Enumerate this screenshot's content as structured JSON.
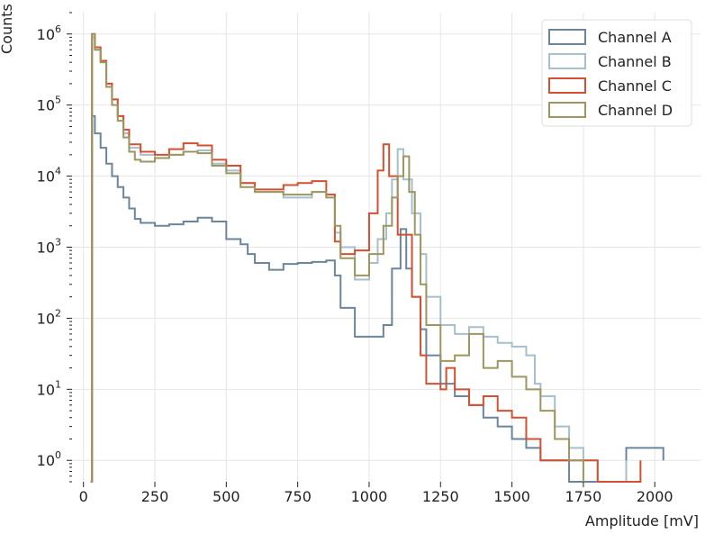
{
  "chart_data": {
    "type": "step-histogram",
    "xlabel": "Amplitude [mV]",
    "ylabel": "Counts",
    "x_ticks": [
      0,
      250,
      500,
      750,
      1000,
      1250,
      1500,
      1750,
      2000
    ],
    "x_tick_labels": [
      "0",
      "250",
      "500",
      "750",
      "1000",
      "1250",
      "1500",
      "1750",
      "2000"
    ],
    "xlim": [
      -40,
      2160
    ],
    "y_scale": "log",
    "ylim": [
      0.5,
      2000000
    ],
    "y_ticks": [
      1,
      10,
      100,
      1000,
      10000,
      100000,
      1000000
    ],
    "y_tick_labels": [
      {
        "base": "10",
        "exp": "0"
      },
      {
        "base": "10",
        "exp": "1"
      },
      {
        "base": "10",
        "exp": "2"
      },
      {
        "base": "10",
        "exp": "3"
      },
      {
        "base": "10",
        "exp": "4"
      },
      {
        "base": "10",
        "exp": "5"
      },
      {
        "base": "10",
        "exp": "6"
      }
    ],
    "grid": true,
    "legend_position": "top-right",
    "series": [
      {
        "name": "Channel A",
        "color": "#6b869b",
        "points": [
          [
            25,
            0.5
          ],
          [
            30,
            70000
          ],
          [
            40,
            40000
          ],
          [
            60,
            25000
          ],
          [
            80,
            15000
          ],
          [
            100,
            10000
          ],
          [
            120,
            7000
          ],
          [
            140,
            5000
          ],
          [
            160,
            3500
          ],
          [
            180,
            2500
          ],
          [
            200,
            2200
          ],
          [
            250,
            2000
          ],
          [
            300,
            2100
          ],
          [
            350,
            2300
          ],
          [
            400,
            2600
          ],
          [
            450,
            2300
          ],
          [
            500,
            1300
          ],
          [
            550,
            1100
          ],
          [
            575,
            800
          ],
          [
            600,
            600
          ],
          [
            650,
            480
          ],
          [
            700,
            580
          ],
          [
            750,
            600
          ],
          [
            800,
            620
          ],
          [
            850,
            650
          ],
          [
            880,
            400
          ],
          [
            900,
            140
          ],
          [
            950,
            55
          ],
          [
            1000,
            55
          ],
          [
            1050,
            80
          ],
          [
            1080,
            500
          ],
          [
            1110,
            1800
          ],
          [
            1130,
            500
          ],
          [
            1150,
            200
          ],
          [
            1180,
            70
          ],
          [
            1200,
            30
          ],
          [
            1250,
            12
          ],
          [
            1300,
            8
          ],
          [
            1350,
            6
          ],
          [
            1400,
            4
          ],
          [
            1450,
            3
          ],
          [
            1500,
            2
          ],
          [
            1550,
            1.5
          ],
          [
            1600,
            1
          ],
          [
            1650,
            1
          ],
          [
            1700,
            0.5
          ],
          [
            1900,
            1.5
          ],
          [
            2030,
            1
          ]
        ]
      },
      {
        "name": "Channel B",
        "color": "#a7bfcc",
        "points": [
          [
            25,
            0.5
          ],
          [
            30,
            900000
          ],
          [
            40,
            600000
          ],
          [
            60,
            400000
          ],
          [
            80,
            200000
          ],
          [
            100,
            120000
          ],
          [
            120,
            70000
          ],
          [
            140,
            40000
          ],
          [
            160,
            25000
          ],
          [
            200,
            20000
          ],
          [
            250,
            18000
          ],
          [
            300,
            20000
          ],
          [
            350,
            22000
          ],
          [
            400,
            23000
          ],
          [
            450,
            15000
          ],
          [
            500,
            12000
          ],
          [
            550,
            8000
          ],
          [
            600,
            6000
          ],
          [
            700,
            5000
          ],
          [
            800,
            6000
          ],
          [
            850,
            5500
          ],
          [
            880,
            1600
          ],
          [
            900,
            1000
          ],
          [
            950,
            350
          ],
          [
            1000,
            600
          ],
          [
            1030,
            1300
          ],
          [
            1060,
            3000
          ],
          [
            1080,
            9000
          ],
          [
            1100,
            24000
          ],
          [
            1120,
            9000
          ],
          [
            1150,
            3000
          ],
          [
            1180,
            800
          ],
          [
            1200,
            200
          ],
          [
            1250,
            80
          ],
          [
            1300,
            60
          ],
          [
            1350,
            75
          ],
          [
            1400,
            55
          ],
          [
            1450,
            45
          ],
          [
            1500,
            40
          ],
          [
            1550,
            30
          ],
          [
            1580,
            12
          ],
          [
            1600,
            8
          ],
          [
            1650,
            3
          ],
          [
            1700,
            1.5
          ],
          [
            1750,
            1
          ],
          [
            1800,
            0.5
          ],
          [
            1900,
            1
          ]
        ]
      },
      {
        "name": "Channel C",
        "color": "#d45033",
        "points": [
          [
            25,
            0.5
          ],
          [
            30,
            1000000
          ],
          [
            40,
            650000
          ],
          [
            60,
            420000
          ],
          [
            80,
            200000
          ],
          [
            100,
            120000
          ],
          [
            120,
            70000
          ],
          [
            140,
            45000
          ],
          [
            160,
            28000
          ],
          [
            200,
            22000
          ],
          [
            250,
            20000
          ],
          [
            300,
            24000
          ],
          [
            350,
            29000
          ],
          [
            400,
            27000
          ],
          [
            450,
            17000
          ],
          [
            500,
            14000
          ],
          [
            550,
            8000
          ],
          [
            600,
            6500
          ],
          [
            700,
            7500
          ],
          [
            750,
            8000
          ],
          [
            800,
            8500
          ],
          [
            850,
            5500
          ],
          [
            880,
            1200
          ],
          [
            900,
            800
          ],
          [
            950,
            900
          ],
          [
            1000,
            3000
          ],
          [
            1030,
            12000
          ],
          [
            1050,
            28000
          ],
          [
            1070,
            10000
          ],
          [
            1100,
            1500
          ],
          [
            1150,
            200
          ],
          [
            1180,
            30
          ],
          [
            1200,
            12
          ],
          [
            1250,
            10
          ],
          [
            1270,
            20
          ],
          [
            1300,
            10
          ],
          [
            1350,
            6
          ],
          [
            1400,
            8
          ],
          [
            1450,
            5
          ],
          [
            1500,
            4
          ],
          [
            1550,
            2
          ],
          [
            1600,
            1
          ],
          [
            1700,
            1
          ],
          [
            1800,
            0.5
          ],
          [
            1950,
            1
          ]
        ]
      },
      {
        "name": "Channel D",
        "color": "#9c9660",
        "points": [
          [
            25,
            0.5
          ],
          [
            30,
            1000000
          ],
          [
            40,
            600000
          ],
          [
            60,
            400000
          ],
          [
            80,
            180000
          ],
          [
            100,
            100000
          ],
          [
            120,
            60000
          ],
          [
            140,
            35000
          ],
          [
            160,
            22000
          ],
          [
            180,
            17000
          ],
          [
            200,
            16000
          ],
          [
            250,
            18000
          ],
          [
            300,
            20000
          ],
          [
            350,
            22000
          ],
          [
            400,
            21000
          ],
          [
            450,
            14000
          ],
          [
            500,
            11000
          ],
          [
            550,
            7000
          ],
          [
            600,
            6000
          ],
          [
            700,
            5500
          ],
          [
            800,
            6000
          ],
          [
            850,
            5000
          ],
          [
            880,
            2000
          ],
          [
            900,
            700
          ],
          [
            950,
            400
          ],
          [
            1000,
            800
          ],
          [
            1050,
            2000
          ],
          [
            1080,
            5000
          ],
          [
            1100,
            10000
          ],
          [
            1120,
            19000
          ],
          [
            1140,
            6000
          ],
          [
            1160,
            1500
          ],
          [
            1180,
            300
          ],
          [
            1200,
            80
          ],
          [
            1250,
            25
          ],
          [
            1300,
            30
          ],
          [
            1350,
            60
          ],
          [
            1400,
            20
          ],
          [
            1450,
            25
          ],
          [
            1500,
            15
          ],
          [
            1550,
            10
          ],
          [
            1600,
            5
          ],
          [
            1650,
            2
          ],
          [
            1700,
            1
          ],
          [
            1750,
            0.5
          ]
        ]
      }
    ]
  }
}
